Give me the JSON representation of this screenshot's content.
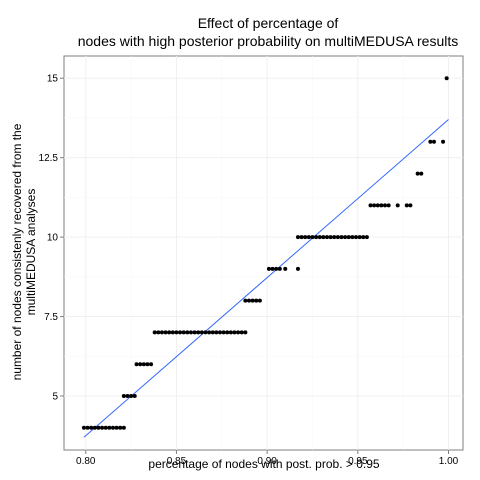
{
  "chart_data": {
    "type": "scatter",
    "title": [
      "Effect of percentage of",
      "nodes with high posterior probability on multiMEDUSA results"
    ],
    "xlabel": "percentage of nodes with post. prob. > 0.95",
    "ylabel": [
      "number of nodes consistenly recovered from the",
      "multiMEDUSA analyses"
    ],
    "xlim": [
      0.788,
      1.008
    ],
    "ylim": [
      3.3,
      15.7
    ],
    "xticks": [
      0.8,
      0.85,
      0.9,
      0.95,
      1.0
    ],
    "xtick_labels": [
      "0.80",
      "0.85",
      "0.90",
      "0.95",
      "1.00"
    ],
    "yticks": [
      5,
      7.5,
      10,
      12.5,
      15
    ],
    "ytick_labels": [
      "5",
      "7.5",
      "10",
      "12.5",
      "15"
    ],
    "grid": true,
    "series": [
      {
        "x": [
          0.799,
          0.801,
          0.803,
          0.805,
          0.807,
          0.809,
          0.811,
          0.813,
          0.815,
          0.817,
          0.819,
          0.821,
          0.821,
          0.823,
          0.825,
          0.827,
          0.828,
          0.83,
          0.832,
          0.834,
          0.836,
          0.838,
          0.84,
          0.842,
          0.844,
          0.846,
          0.848,
          0.85,
          0.852,
          0.854,
          0.856,
          0.858,
          0.86,
          0.862,
          0.864,
          0.866,
          0.868,
          0.87,
          0.872,
          0.874,
          0.876,
          0.878,
          0.88,
          0.882,
          0.884,
          0.886,
          0.888,
          0.888,
          0.89,
          0.892,
          0.894,
          0.896,
          0.901,
          0.903,
          0.905,
          0.907,
          0.91,
          0.917,
          0.917,
          0.919,
          0.921,
          0.923,
          0.925,
          0.927,
          0.929,
          0.931,
          0.933,
          0.935,
          0.937,
          0.939,
          0.941,
          0.943,
          0.945,
          0.947,
          0.949,
          0.951,
          0.953,
          0.955,
          0.957,
          0.959,
          0.961,
          0.963,
          0.965,
          0.967,
          0.972,
          0.977,
          0.979,
          0.983,
          0.985,
          0.99,
          0.992,
          0.997,
          0.999
        ],
        "y": [
          4,
          4,
          4,
          4,
          4,
          4,
          4,
          4,
          4,
          4,
          4,
          4,
          5,
          5,
          5,
          5,
          6,
          6,
          6,
          6,
          6,
          7,
          7,
          7,
          7,
          7,
          7,
          7,
          7,
          7,
          7,
          7,
          7,
          7,
          7,
          7,
          7,
          7,
          7,
          7,
          7,
          7,
          7,
          7,
          7,
          7,
          7,
          8,
          8,
          8,
          8,
          8,
          9,
          9,
          9,
          9,
          9,
          9,
          10,
          10,
          10,
          10,
          10,
          10,
          10,
          10,
          10,
          10,
          10,
          10,
          10,
          10,
          10,
          10,
          10,
          10,
          10,
          10,
          11,
          11,
          11,
          11,
          11,
          11,
          11,
          11,
          11,
          12,
          12,
          13,
          13,
          13,
          15
        ]
      }
    ],
    "fit_line": {
      "type": "linear",
      "x": [
        0.799,
        1.0
      ],
      "y": [
        3.7,
        13.7
      ],
      "color": "#3366FF"
    },
    "colors": {
      "points": "#000000",
      "fit": "#3366FF",
      "grid": "#f0f0f0",
      "frame": "#7f7f7f"
    }
  }
}
